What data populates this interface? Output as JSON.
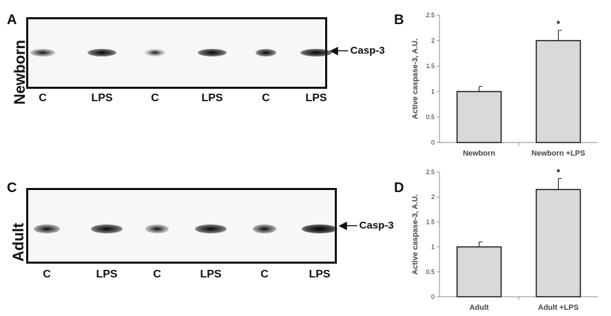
{
  "panels": {
    "A": "A",
    "B": "B",
    "C": "C",
    "D": "D"
  },
  "blots": [
    {
      "row_label": "Newborn",
      "marker": "Casp-3",
      "lanes": [
        "C",
        "LPS",
        "C",
        "LPS",
        "C",
        "LPS"
      ],
      "band_intensity": [
        0.45,
        0.85,
        0.25,
        0.85,
        0.75,
        0.9
      ]
    },
    {
      "row_label": "Adult",
      "marker": "Casp-3",
      "lanes": [
        "C",
        "LPS",
        "C",
        "LPS",
        "C",
        "LPS"
      ],
      "band_intensity": [
        0.6,
        0.85,
        0.45,
        0.85,
        0.6,
        1.0
      ]
    }
  ],
  "chart_data": [
    {
      "type": "bar",
      "categories": [
        "Newborn",
        "Newborn +LPS"
      ],
      "values": [
        1.0,
        2.0
      ],
      "errors": [
        0.1,
        0.2
      ],
      "annotations": [
        "",
        "*"
      ],
      "title": "",
      "xlabel": "",
      "ylabel": "Active caspase-3, A.U.",
      "ylim": [
        0,
        2.5
      ],
      "yticks": [
        "0",
        "0.5",
        "1",
        "1.5",
        "2",
        "2.5"
      ],
      "bar_color": "#d9d9d9"
    },
    {
      "type": "bar",
      "categories": [
        "Adult",
        "Adult +LPS"
      ],
      "values": [
        1.0,
        2.15
      ],
      "errors": [
        0.1,
        0.22
      ],
      "annotations": [
        "",
        "*"
      ],
      "title": "",
      "xlabel": "",
      "ylabel": "Active caspase-3, A.U.",
      "ylim": [
        0,
        2.5
      ],
      "yticks": [
        "0",
        "0.5",
        "1",
        "1.5",
        "2",
        "2.5"
      ],
      "bar_color": "#d9d9d9"
    }
  ]
}
